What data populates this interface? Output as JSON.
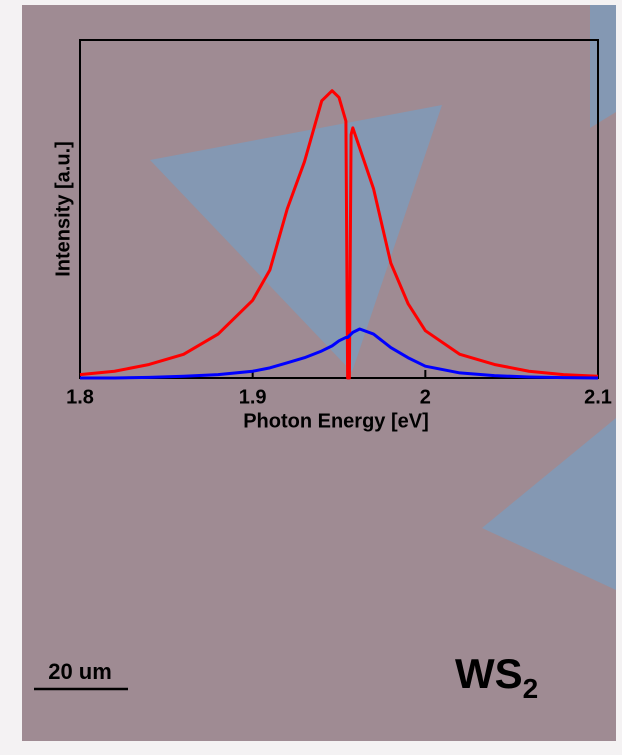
{
  "chart_data": {
    "type": "line",
    "x_label": "Photon Energy [eV]",
    "y_label": "Intensity [a.u.]",
    "x": [
      1.8,
      1.82,
      1.84,
      1.86,
      1.88,
      1.9,
      1.91,
      1.92,
      1.93,
      1.94,
      1.946,
      1.95,
      1.954,
      1.955,
      1.956,
      1.957,
      1.958,
      1.962,
      1.97,
      1.98,
      1.99,
      2.0,
      2.02,
      2.04,
      2.06,
      2.08,
      2.1
    ],
    "series": [
      {
        "color": "#ff0000",
        "values": [
          0.01,
          0.02,
          0.04,
          0.07,
          0.13,
          0.23,
          0.32,
          0.5,
          0.64,
          0.82,
          0.85,
          0.83,
          0.76,
          0.0,
          0.0,
          0.72,
          0.74,
          0.68,
          0.56,
          0.34,
          0.22,
          0.14,
          0.07,
          0.04,
          0.02,
          0.01,
          0.005
        ]
      },
      {
        "color": "#0000ff",
        "values": [
          0.0,
          0.0,
          0.002,
          0.005,
          0.01,
          0.02,
          0.03,
          0.045,
          0.06,
          0.08,
          0.095,
          0.11,
          0.12,
          0.12,
          0.125,
          0.13,
          0.135,
          0.145,
          0.13,
          0.09,
          0.06,
          0.035,
          0.015,
          0.007,
          0.003,
          0.001,
          0.0
        ]
      }
    ],
    "xlim": [
      1.8,
      2.1
    ],
    "xticks": [
      1.8,
      1.9,
      2,
      2.1
    ],
    "ylim": [
      0,
      1
    ]
  },
  "scale_bar": "20 um",
  "sample_label": {
    "text": "WS",
    "subscript": "2"
  }
}
